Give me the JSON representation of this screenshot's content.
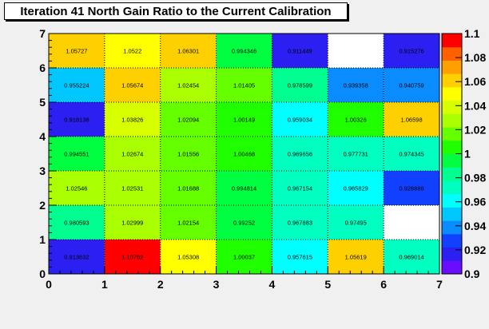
{
  "chart_data": {
    "type": "heatmap",
    "title": "Iteration 41 North Gain Ratio to the Current Calibration",
    "x_edges": [
      0,
      1,
      2,
      3,
      4,
      5,
      6,
      7
    ],
    "y_edges": [
      0,
      1,
      2,
      3,
      4,
      5,
      6,
      7
    ],
    "xlim": [
      0,
      7
    ],
    "ylim": [
      0,
      7
    ],
    "x_ticks": [
      "0",
      "1",
      "2",
      "3",
      "4",
      "5",
      "6",
      "7"
    ],
    "y_ticks": [
      "0",
      "1",
      "2",
      "3",
      "4",
      "5",
      "6",
      "7"
    ],
    "grid": true,
    "z_range": [
      0.9,
      1.1
    ],
    "z_ticks": [
      "0.9",
      "0.92",
      "0.94",
      "0.96",
      "0.98",
      "1",
      "1.02",
      "1.04",
      "1.06",
      "1.08",
      "1.1"
    ],
    "palette_colors": [
      "#6a0dff",
      "#2b1ff2",
      "#1240ff",
      "#0a8cff",
      "#00c8ff",
      "#00ffff",
      "#00ffc0",
      "#00ff90",
      "#00ff40",
      "#20ff00",
      "#66ff00",
      "#aaff00",
      "#d8ff00",
      "#ffff00",
      "#ffd000",
      "#ffa000",
      "#ff6000",
      "#ff0000"
    ],
    "rows": [
      {
        "y": 0,
        "values": [
          "0.913632",
          "1.10762",
          "1.05308",
          "1.00037",
          "0.957615",
          "1.05619",
          "0.969014"
        ]
      },
      {
        "y": 1,
        "values": [
          "0.980593",
          "1.02999",
          "1.02154",
          "0.99252",
          "0.967883",
          "0.97495",
          ""
        ]
      },
      {
        "y": 2,
        "values": [
          "1.02546",
          "1.02531",
          "1.01688",
          "0.994814",
          "0.967154",
          "0.965829",
          "0.926886"
        ]
      },
      {
        "y": 3,
        "values": [
          "0.994551",
          "1.02674",
          "1.01556",
          "1.00468",
          "0.969656",
          "0.977731",
          "0.974345"
        ]
      },
      {
        "y": 4,
        "values": [
          "0.918138",
          "1.03826",
          "1.02094",
          "1.00149",
          "0.959034",
          "1.00326",
          "1.06598"
        ]
      },
      {
        "y": 5,
        "values": [
          "0.955224",
          "1.05674",
          "1.02454",
          "1.01405",
          "0.978599",
          "0.939358",
          "0.940759"
        ]
      },
      {
        "y": 6,
        "values": [
          "1.05727",
          "1.0522",
          "1.06301",
          "0.994346",
          "0.911449",
          "",
          "0.915276"
        ]
      }
    ]
  }
}
